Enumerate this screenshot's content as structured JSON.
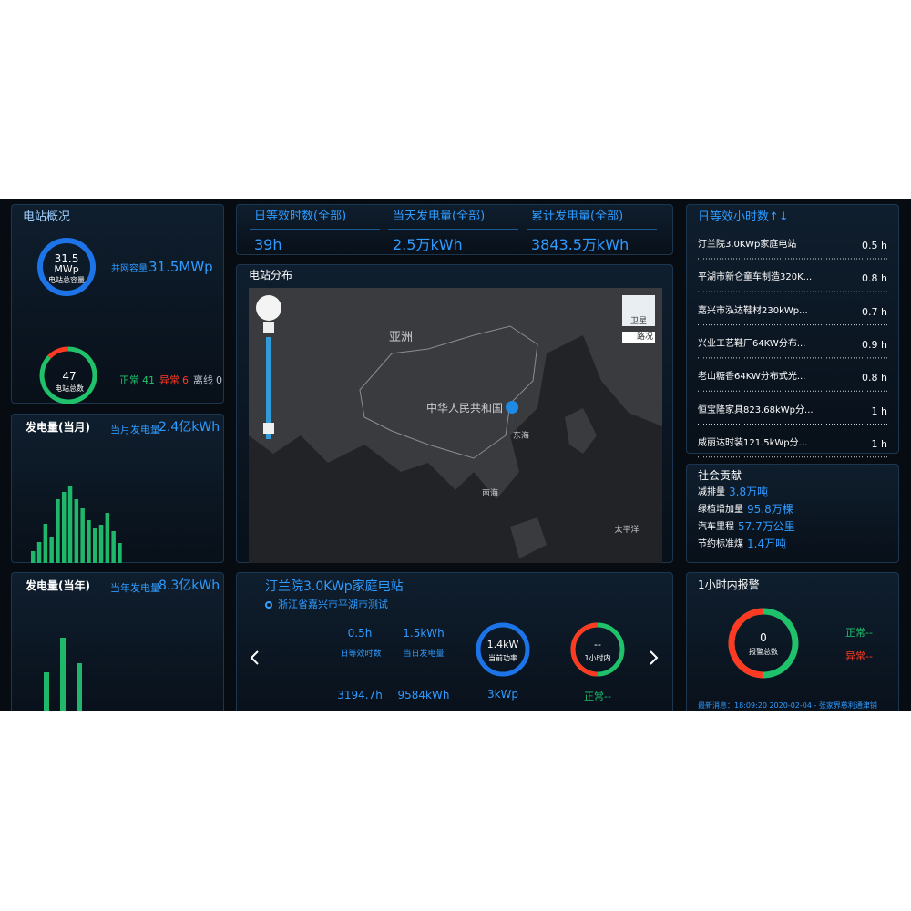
{
  "overview": {
    "title": "电站概况",
    "capacity_value": "31.5",
    "capacity_unit": "MWp",
    "capacity_label": "电站总容量",
    "grid_label": "并网容量",
    "grid_value": "31.5MWp",
    "total": 47,
    "total_label": "电站总数",
    "status": [
      {
        "label": "正常",
        "count": 41,
        "color": "#1fc16b"
      },
      {
        "label": "异常",
        "count": 6,
        "color": "#ff3a22"
      },
      {
        "label": "离线",
        "count": 0,
        "color": "#b8c2cc"
      }
    ]
  },
  "monthly": {
    "title": "发电量(当月)",
    "summary_label": "当月发电量",
    "summary_value": "2.4亿kWh",
    "color": "#1fb86a",
    "values": [
      13,
      23,
      43,
      28,
      70,
      78,
      85,
      70,
      60,
      47,
      38,
      42,
      55,
      35,
      22
    ]
  },
  "yearly": {
    "title": "发电量(当年)",
    "summary_label": "当年发电量",
    "summary_value": "8.3亿kWh",
    "color": "#1fb86a",
    "values": [
      42,
      80,
      52
    ]
  },
  "stats": [
    {
      "label": "日等效时数(全部)",
      "value": "39h"
    },
    {
      "label": "当天发电量(全部)",
      "value": "2.5万kWh"
    },
    {
      "label": "累计发电量(全部)",
      "value": "3843.5万kWh"
    }
  ],
  "map": {
    "title": "电站分布",
    "labels": [
      "亚洲",
      "中华人民共和国",
      "东海",
      "南海",
      "太平洋"
    ],
    "buttons": [
      "卫星",
      "路况"
    ]
  },
  "station": {
    "name": "汀兰院3.0KWp家庭电站",
    "address": "浙江省嘉兴市平湖市测试",
    "daily_hours": "0.5h",
    "daily_hours_label": "日等效时数",
    "daily_energy": "1.5kWh",
    "daily_energy_label": "当日发电量",
    "total_hours": "3194.7h",
    "total_energy": "9584kWh",
    "power": "1.4kW",
    "power_label": "当前功率",
    "capacity": "3kWp",
    "hour_value": "--",
    "hour_label": "1小时内",
    "hour_status": "正常--"
  },
  "ranking": {
    "title": "日等效小时数↑↓",
    "rows": [
      {
        "name": "汀兰院3.0KWp家庭电站",
        "value": "0.5 h"
      },
      {
        "name": "平湖市新仑童车制造320K...",
        "value": "0.8 h"
      },
      {
        "name": "嘉兴市泓达鞋材230kWp...",
        "value": "0.7 h"
      },
      {
        "name": "兴业工艺鞋厂64KW分布...",
        "value": "0.9 h"
      },
      {
        "name": "老山糖香64KW分布式光...",
        "value": "0.8 h"
      },
      {
        "name": "恒宝隆家具823.68kWp分...",
        "value": "1 h"
      },
      {
        "name": "威丽达时装121.5kWp分...",
        "value": "1 h"
      }
    ]
  },
  "social": {
    "title": "社会贡献",
    "rows": [
      {
        "label": "减排量",
        "value": "3.8万吨"
      },
      {
        "label": "绿植增加量",
        "value": "95.8万棵"
      },
      {
        "label": "汽车里程",
        "value": "57.7万公里"
      },
      {
        "label": "节约标准煤",
        "value": "1.4万吨"
      }
    ]
  },
  "alarm": {
    "title": "1小时内报警",
    "total": 0,
    "total_label": "报警总数",
    "normal": "正常--",
    "abnormal": "异常--",
    "latest": "最新消息：18:09:20 2020-02-04 - 张家界慈利通津铺"
  }
}
